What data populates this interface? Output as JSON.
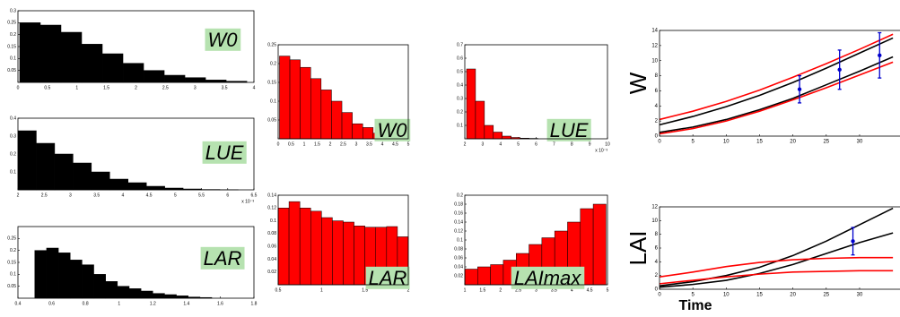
{
  "chart_data": [
    {
      "type": "histogram",
      "color": "#000000",
      "annotation": "W0",
      "bins": [
        0.03,
        0.38,
        0.73,
        1.08,
        1.43,
        1.78,
        2.13,
        2.48,
        2.83,
        3.18,
        3.53,
        3.88
      ],
      "counts": [
        0.25,
        0.24,
        0.21,
        0.16,
        0.12,
        0.08,
        0.05,
        0.03,
        0.02,
        0.01,
        0.005
      ],
      "xlim": [
        0,
        4
      ],
      "xticks": [
        0,
        0.5,
        1,
        1.5,
        2,
        2.5,
        3,
        3.5,
        4
      ],
      "ylim": [
        0,
        0.3
      ],
      "yticks": [
        0.05,
        0.1,
        0.15,
        0.2,
        0.25,
        0.3
      ]
    },
    {
      "type": "histogram",
      "color": "#000000",
      "annotation": "LUE",
      "x_scale_label": "x 10⁻³",
      "bins": [
        2.0,
        2.35,
        2.7,
        3.05,
        3.4,
        3.75,
        4.1,
        4.45,
        4.8,
        5.15,
        5.5,
        5.85,
        6.2
      ],
      "counts": [
        0.33,
        0.26,
        0.2,
        0.15,
        0.1,
        0.06,
        0.04,
        0.02,
        0.01,
        0.005,
        0.002,
        0.001
      ],
      "xlim": [
        2,
        6.5
      ],
      "xticks": [
        2,
        2.5,
        3,
        3.5,
        4,
        4.5,
        5,
        5.5,
        6,
        6.5
      ],
      "ylim": [
        0,
        0.4
      ],
      "yticks": [
        0.1,
        0.2,
        0.3,
        0.4
      ]
    },
    {
      "type": "histogram",
      "color": "#000000",
      "annotation": "LAR",
      "bins": [
        0.5,
        0.57,
        0.64,
        0.71,
        0.78,
        0.85,
        0.92,
        0.99,
        1.06,
        1.13,
        1.2,
        1.27,
        1.34,
        1.41,
        1.48,
        1.55
      ],
      "counts": [
        0.2,
        0.21,
        0.19,
        0.16,
        0.14,
        0.1,
        0.07,
        0.05,
        0.04,
        0.03,
        0.02,
        0.015,
        0.01,
        0.005,
        0.003
      ],
      "xlim": [
        0.4,
        1.8
      ],
      "xticks": [
        0.4,
        0.6,
        0.8,
        1,
        1.2,
        1.4,
        1.6,
        1.8
      ],
      "ylim": [
        0,
        0.3
      ],
      "yticks": [
        0.05,
        0.1,
        0.15,
        0.2,
        0.25
      ]
    },
    {
      "type": "histogram",
      "color": "#ff0000",
      "annotation": "W0",
      "bins": [
        0.05,
        0.45,
        0.85,
        1.25,
        1.65,
        2.05,
        2.45,
        2.85,
        3.25,
        3.65,
        4.05,
        4.45
      ],
      "counts": [
        0.22,
        0.21,
        0.19,
        0.16,
        0.13,
        0.1,
        0.07,
        0.04,
        0.03,
        0.015,
        0.01
      ],
      "xlim": [
        0,
        5
      ],
      "xticks": [
        0,
        0.5,
        1,
        1.5,
        2,
        2.5,
        3,
        3.5,
        4,
        4.5,
        5
      ],
      "ylim": [
        0,
        0.25
      ],
      "yticks": [
        0.05,
        0.1,
        0.15,
        0.2,
        0.25
      ]
    },
    {
      "type": "histogram",
      "color": "#ff0000",
      "annotation": "LUE",
      "x_scale_label": "x 10⁻³",
      "bins": [
        2.1,
        2.6,
        3.1,
        3.6,
        4.1,
        4.6,
        5.1,
        5.6,
        6.1
      ],
      "counts": [
        0.52,
        0.28,
        0.1,
        0.05,
        0.02,
        0.01,
        0.005,
        0.003
      ],
      "xlim": [
        2,
        10
      ],
      "xticks": [
        2,
        3,
        4,
        5,
        6,
        7,
        8,
        9,
        10
      ],
      "ylim": [
        0,
        0.7
      ],
      "yticks": [
        0.1,
        0.2,
        0.3,
        0.4,
        0.5,
        0.6,
        0.7
      ]
    },
    {
      "type": "histogram",
      "color": "#ff0000",
      "annotation": "LAR",
      "bins": [
        0.5,
        0.625,
        0.75,
        0.875,
        1.0,
        1.125,
        1.25,
        1.375,
        1.5,
        1.625,
        1.75,
        1.875,
        2.0
      ],
      "counts": [
        0.12,
        0.13,
        0.12,
        0.115,
        0.105,
        0.1,
        0.098,
        0.092,
        0.09,
        0.09,
        0.091,
        0.075
      ],
      "xlim": [
        0.5,
        2
      ],
      "xticks": [
        0.5,
        1,
        1.5,
        2
      ],
      "ylim": [
        0,
        0.14
      ],
      "yticks": [
        0.02,
        0.04,
        0.06,
        0.08,
        0.1,
        0.12,
        0.14
      ]
    },
    {
      "type": "histogram",
      "color": "#ff0000",
      "annotation": "LAImax",
      "bins": [
        1,
        1.36,
        1.72,
        2.08,
        2.44,
        2.8,
        3.16,
        3.52,
        3.88,
        4.24,
        4.6,
        4.96
      ],
      "counts": [
        0.035,
        0.04,
        0.045,
        0.055,
        0.07,
        0.09,
        0.105,
        0.12,
        0.14,
        0.17,
        0.18
      ],
      "xlim": [
        1,
        5
      ],
      "xticks": [
        1,
        1.5,
        2,
        2.5,
        3,
        3.5,
        4,
        4.5,
        5
      ],
      "ylim": [
        0,
        0.2
      ],
      "yticks": [
        0.02,
        0.04,
        0.06,
        0.08,
        0.1,
        0.12,
        0.14,
        0.16,
        0.18,
        0.2
      ]
    },
    {
      "type": "line",
      "y_label": "W",
      "x": [
        0,
        5,
        10,
        15,
        20,
        25,
        30,
        35
      ],
      "series": [
        {
          "color": "#000000",
          "values": [
            0.5,
            1.2,
            2.2,
            3.5,
            5,
            6.8,
            8.6,
            10.5
          ]
        },
        {
          "color": "#000000",
          "values": [
            1.5,
            2.6,
            3.9,
            5.4,
            7.1,
            9,
            11,
            13
          ]
        },
        {
          "color": "#ff0000",
          "values": [
            2.2,
            3.3,
            4.6,
            6.1,
            7.8,
            9.6,
            11.5,
            13.5
          ]
        },
        {
          "color": "#ff0000",
          "values": [
            0.3,
            1,
            2,
            3.3,
            4.8,
            6.4,
            8.1,
            9.8
          ]
        }
      ],
      "points": {
        "color": "#0000cc",
        "x": [
          21,
          27,
          33
        ],
        "values": [
          6.2,
          8.8,
          10.7
        ],
        "errors": [
          1.8,
          2.6,
          3
        ]
      },
      "xlim": [
        0,
        37
      ],
      "xticks": [
        0,
        5,
        10,
        15,
        20,
        25,
        30
      ],
      "ylim": [
        0,
        14
      ],
      "yticks": [
        0,
        2,
        4,
        6,
        8,
        10,
        12,
        14
      ]
    },
    {
      "type": "line",
      "y_label": "LAI",
      "x_label": "Time",
      "x": [
        0,
        5,
        10,
        15,
        20,
        25,
        30,
        35
      ],
      "series": [
        {
          "color": "#000000",
          "values": [
            0.5,
            1.1,
            2,
            3.2,
            4.9,
            7,
            9.4,
            11.8
          ]
        },
        {
          "color": "#000000",
          "values": [
            0.3,
            0.7,
            1.3,
            2.3,
            3.6,
            5.2,
            6.8,
            8.2
          ]
        },
        {
          "color": "#ff0000",
          "values": [
            1.8,
            2.5,
            3.3,
            3.9,
            4.3,
            4.5,
            4.6,
            4.6
          ]
        },
        {
          "color": "#ff0000",
          "values": [
            0.8,
            1.3,
            1.8,
            2.2,
            2.5,
            2.6,
            2.7,
            2.7
          ]
        }
      ],
      "points": {
        "color": "#0000cc",
        "x": [
          29
        ],
        "values": [
          7
        ],
        "errors": [
          2
        ]
      },
      "xlim": [
        0,
        37
      ],
      "xticks": [
        0,
        5,
        10,
        15,
        20,
        25,
        30
      ],
      "ylim": [
        0,
        12
      ],
      "yticks": [
        0,
        2,
        4,
        6,
        8,
        10,
        12
      ]
    }
  ]
}
